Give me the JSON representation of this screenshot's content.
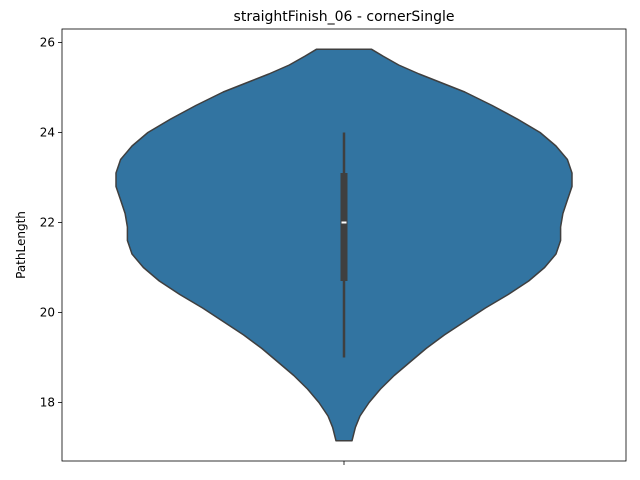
{
  "chart_data": {
    "type": "violin",
    "title": "straightFinish_06 - cornerSingle",
    "xlabel": "",
    "ylabel": "PathLength",
    "ylim": [
      16.7,
      26.3
    ],
    "yticks": [
      18,
      20,
      22,
      24,
      26
    ],
    "grid": false,
    "colors": {
      "fill": "#3274a1",
      "outline": "#3f3f3f",
      "box": "#3f3f3f",
      "median": "#ffffff"
    },
    "violin": {
      "min": 17.15,
      "max": 25.85,
      "whisker_low": 19.0,
      "whisker_high": 24.0,
      "q1": 20.7,
      "median": 22.0,
      "q3": 23.1,
      "density_profile": [
        [
          25.85,
          0.12
        ],
        [
          25.7,
          0.17
        ],
        [
          25.5,
          0.24
        ],
        [
          25.3,
          0.33
        ],
        [
          25.1,
          0.43
        ],
        [
          24.9,
          0.53
        ],
        [
          24.6,
          0.65
        ],
        [
          24.3,
          0.76
        ],
        [
          24.0,
          0.86
        ],
        [
          23.7,
          0.93
        ],
        [
          23.4,
          0.98
        ],
        [
          23.1,
          1.0
        ],
        [
          22.8,
          1.0
        ],
        [
          22.5,
          0.98
        ],
        [
          22.2,
          0.96
        ],
        [
          21.9,
          0.95
        ],
        [
          21.6,
          0.95
        ],
        [
          21.3,
          0.93
        ],
        [
          21.0,
          0.88
        ],
        [
          20.7,
          0.81
        ],
        [
          20.4,
          0.72
        ],
        [
          20.1,
          0.62
        ],
        [
          19.8,
          0.53
        ],
        [
          19.5,
          0.44
        ],
        [
          19.2,
          0.36
        ],
        [
          18.9,
          0.29
        ],
        [
          18.6,
          0.22
        ],
        [
          18.3,
          0.16
        ],
        [
          18.0,
          0.11
        ],
        [
          17.7,
          0.07
        ],
        [
          17.45,
          0.05
        ],
        [
          17.15,
          0.035
        ]
      ]
    }
  }
}
